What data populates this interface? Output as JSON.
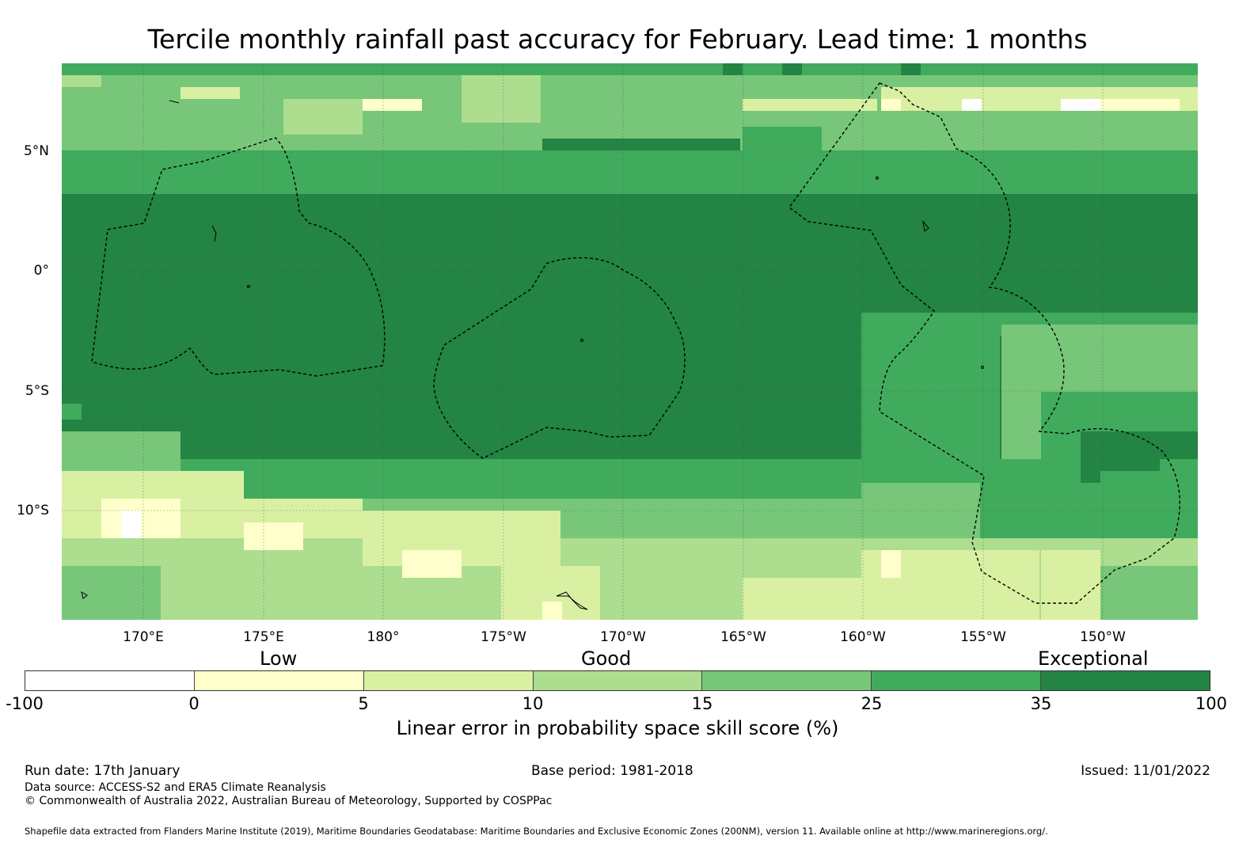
{
  "title": "Tercile monthly rainfall past accuracy for February. Lead time: 1 months",
  "map": {
    "lat_labels": [
      "5°N",
      "0°",
      "5°S",
      "10°S"
    ],
    "lon_labels": [
      "170°E",
      "175°E",
      "180°",
      "175°W",
      "170°W",
      "165°W",
      "160°W",
      "155°W",
      "150°W"
    ],
    "lat_range": [
      -14.5,
      8.5
    ],
    "lon_range": [
      166.7,
      213.5
    ],
    "boundary_style": "dashed black EEZ outlines",
    "colors": {
      "neg": "#ffffff",
      "b0_5": "#ffffcc",
      "b5_10": "#d9f0a3",
      "b10_15": "#addd8e",
      "b15_25": "#78c679",
      "b25_35": "#41ab5d",
      "b35_100": "#238443"
    }
  },
  "categories": {
    "low": "Low",
    "good": "Good",
    "exceptional": "Exceptional"
  },
  "colorbar": {
    "ticks": [
      "-100",
      "0",
      "5",
      "10",
      "15",
      "25",
      "35",
      "100"
    ],
    "colors": [
      "#ffffff",
      "#ffffcc",
      "#d9f0a3",
      "#addd8e",
      "#78c679",
      "#41ab5d",
      "#238443"
    ],
    "label": "Linear error in probability space skill score (%)"
  },
  "footer": {
    "run_date": "Run date: 17th January",
    "base_period": "Base period: 1981-2018",
    "issued": "Issued: 11/01/2022",
    "data_source": "Data source: ACCESS-S2 and ERA5 Climate Reanalysis",
    "copyright": "© Commonwealth of Australia 2022, Australian Bureau of Meteorology, Supported by COSPPac",
    "shapefile": "Shapefile data extracted from Flanders Marine Institute (2019), Maritime Boundaries Geodatabase: Maritime Boundaries and Exclusive Economic Zones (200NM), version 11. Available online at http://www.marineregions.org/."
  }
}
